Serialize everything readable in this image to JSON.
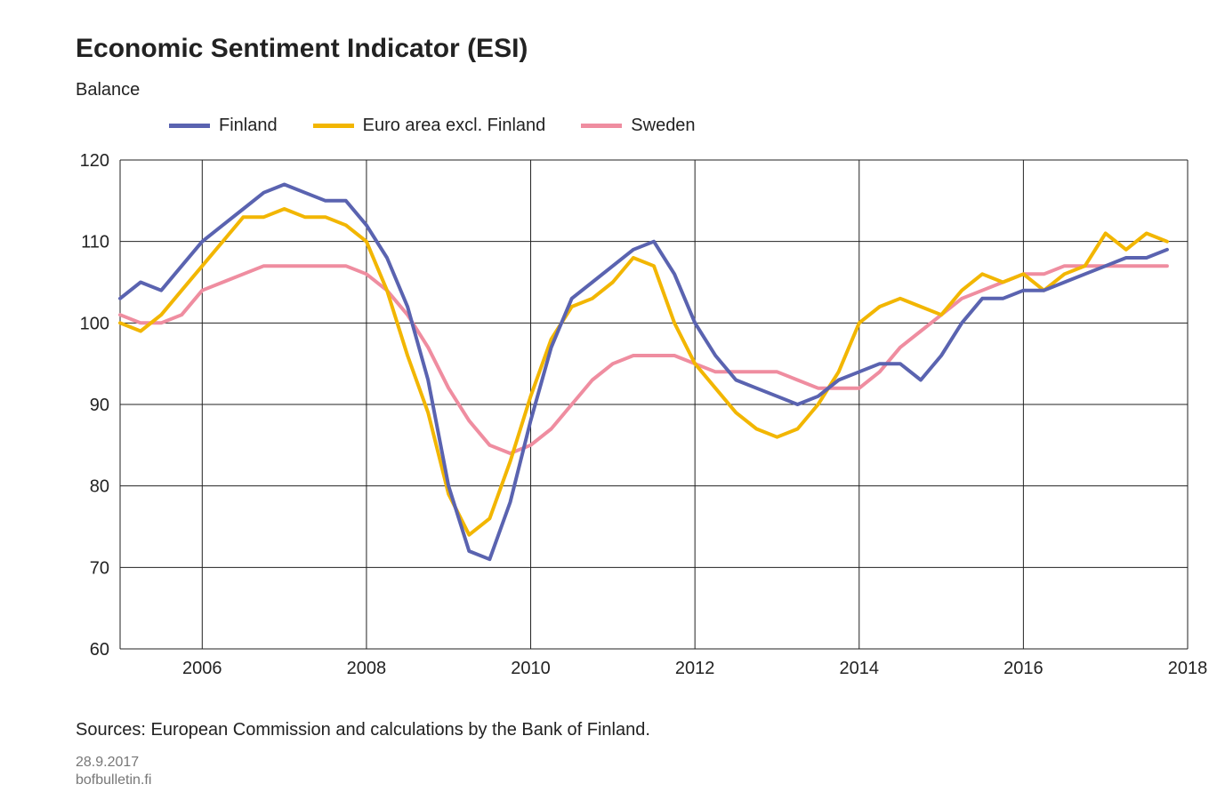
{
  "title": "Economic Sentiment Indicator (ESI)",
  "ylabel": "Balance",
  "legend": [
    {
      "label": "Finland",
      "color": "#5a63b0"
    },
    {
      "label": "Euro area excl. Finland",
      "color": "#f2b601"
    },
    {
      "label": "Sweden",
      "color": "#ef8da0"
    }
  ],
  "source_text": "Sources: European Commission and calculations by the Bank of Finland.",
  "footnote_date": "28.9.2017",
  "footnote_site": "bofbulletin.fi",
  "chart": {
    "type": "line",
    "background_color": "transparent",
    "font_family": "Arial",
    "title_fontsize": 30,
    "label_fontsize": 20,
    "tick_fontsize": 20,
    "line_width": 4,
    "x": {
      "min": 2005,
      "max": 2018,
      "ticks": [
        2006,
        2008,
        2010,
        2012,
        2014,
        2016,
        2018
      ]
    },
    "y": {
      "min": 60,
      "max": 120,
      "ticks": [
        60,
        70,
        80,
        90,
        100,
        110,
        120
      ]
    },
    "grid": {
      "show_vertical": true,
      "show_horizontal": true,
      "color": "#222222"
    },
    "series": {
      "finland": {
        "color": "#5a63b0",
        "x": [
          2005.0,
          2005.25,
          2005.5,
          2005.75,
          2006.0,
          2006.25,
          2006.5,
          2006.75,
          2007.0,
          2007.25,
          2007.5,
          2007.75,
          2008.0,
          2008.25,
          2008.5,
          2008.75,
          2009.0,
          2009.25,
          2009.5,
          2009.75,
          2010.0,
          2010.25,
          2010.5,
          2010.75,
          2011.0,
          2011.25,
          2011.5,
          2011.75,
          2012.0,
          2012.25,
          2012.5,
          2012.75,
          2013.0,
          2013.25,
          2013.5,
          2013.75,
          2014.0,
          2014.25,
          2014.5,
          2014.75,
          2015.0,
          2015.25,
          2015.5,
          2015.75,
          2016.0,
          2016.25,
          2016.5,
          2016.75,
          2017.0,
          2017.25,
          2017.5,
          2017.75
        ],
        "y": [
          103,
          105,
          104,
          107,
          110,
          112,
          114,
          116,
          117,
          116,
          115,
          115,
          112,
          108,
          102,
          93,
          80,
          72,
          71,
          78,
          88,
          97,
          103,
          105,
          107,
          109,
          110,
          106,
          100,
          96,
          93,
          92,
          91,
          90,
          91,
          93,
          94,
          95,
          95,
          93,
          96,
          100,
          103,
          103,
          104,
          104,
          105,
          106,
          107,
          108,
          108,
          109
        ]
      },
      "euro_area_excl_finland": {
        "color": "#f2b601",
        "x": [
          2005.0,
          2005.25,
          2005.5,
          2005.75,
          2006.0,
          2006.25,
          2006.5,
          2006.75,
          2007.0,
          2007.25,
          2007.5,
          2007.75,
          2008.0,
          2008.25,
          2008.5,
          2008.75,
          2009.0,
          2009.25,
          2009.5,
          2009.75,
          2010.0,
          2010.25,
          2010.5,
          2010.75,
          2011.0,
          2011.25,
          2011.5,
          2011.75,
          2012.0,
          2012.25,
          2012.5,
          2012.75,
          2013.0,
          2013.25,
          2013.5,
          2013.75,
          2014.0,
          2014.25,
          2014.5,
          2014.75,
          2015.0,
          2015.25,
          2015.5,
          2015.75,
          2016.0,
          2016.25,
          2016.5,
          2016.75,
          2017.0,
          2017.25,
          2017.5,
          2017.75
        ],
        "y": [
          100,
          99,
          101,
          104,
          107,
          110,
          113,
          113,
          114,
          113,
          113,
          112,
          110,
          104,
          96,
          89,
          79,
          74,
          76,
          83,
          91,
          98,
          102,
          103,
          105,
          108,
          107,
          100,
          95,
          92,
          89,
          87,
          86,
          87,
          90,
          94,
          100,
          102,
          103,
          102,
          101,
          104,
          106,
          105,
          106,
          104,
          106,
          107,
          111,
          109,
          111,
          110
        ]
      },
      "sweden": {
        "color": "#ef8da0",
        "x": [
          2005.0,
          2005.25,
          2005.5,
          2005.75,
          2006.0,
          2006.25,
          2006.5,
          2006.75,
          2007.0,
          2007.25,
          2007.5,
          2007.75,
          2008.0,
          2008.25,
          2008.5,
          2008.75,
          2009.0,
          2009.25,
          2009.5,
          2009.75,
          2010.0,
          2010.25,
          2010.5,
          2010.75,
          2011.0,
          2011.25,
          2011.5,
          2011.75,
          2012.0,
          2012.25,
          2012.5,
          2012.75,
          2013.0,
          2013.25,
          2013.5,
          2013.75,
          2014.0,
          2014.25,
          2014.5,
          2014.75,
          2015.0,
          2015.25,
          2015.5,
          2015.75,
          2016.0,
          2016.25,
          2016.5,
          2016.75,
          2017.0,
          2017.25,
          2017.5,
          2017.75
        ],
        "y": [
          101,
          100,
          100,
          101,
          104,
          105,
          106,
          107,
          107,
          107,
          107,
          107,
          106,
          104,
          101,
          97,
          92,
          88,
          85,
          84,
          85,
          87,
          90,
          93,
          95,
          96,
          96,
          96,
          95,
          94,
          94,
          94,
          94,
          93,
          92,
          92,
          92,
          94,
          97,
          99,
          101,
          103,
          104,
          105,
          106,
          106,
          107,
          107,
          107,
          107,
          107,
          107
        ]
      }
    }
  }
}
